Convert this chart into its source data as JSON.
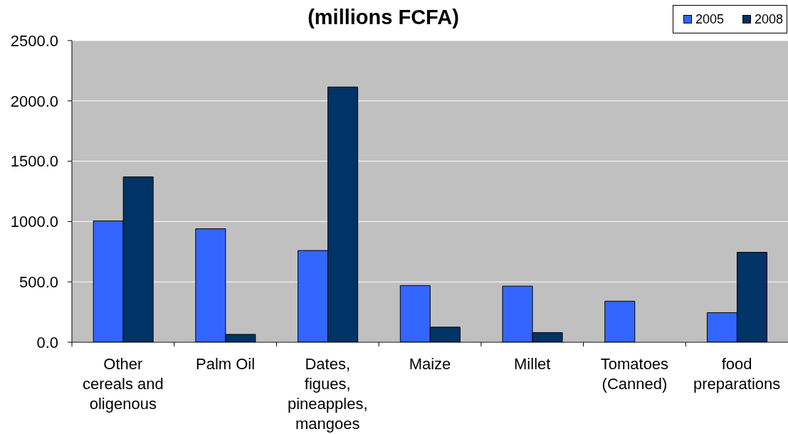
{
  "chart_data": {
    "type": "bar",
    "title": "(millions FCFA)",
    "categories": [
      "Other cereals and oligenous",
      "Palm Oil",
      "Dates, figues, pineapples, mangoes",
      "Maize",
      "Millet",
      "Tomatoes (Canned)",
      "food preparations"
    ],
    "series": [
      {
        "name": "2005",
        "color": "#3366ff",
        "values": [
          1005,
          940,
          760,
          470,
          465,
          340,
          245
        ]
      },
      {
        "name": "2008",
        "color": "#003366",
        "values": [
          1370,
          65,
          2115,
          125,
          80,
          null,
          745
        ]
      }
    ],
    "ylim": [
      0,
      2500
    ],
    "yticks": [
      {
        "value": 0,
        "label": "0.0"
      },
      {
        "value": 500,
        "label": "500.0"
      },
      {
        "value": 1000,
        "label": "1000.0"
      },
      {
        "value": 1500,
        "label": "1500.0"
      },
      {
        "value": 2000,
        "label": "2000.0"
      },
      {
        "value": 2500,
        "label": "2500.0"
      }
    ],
    "grid": "y",
    "legend": "top right"
  }
}
